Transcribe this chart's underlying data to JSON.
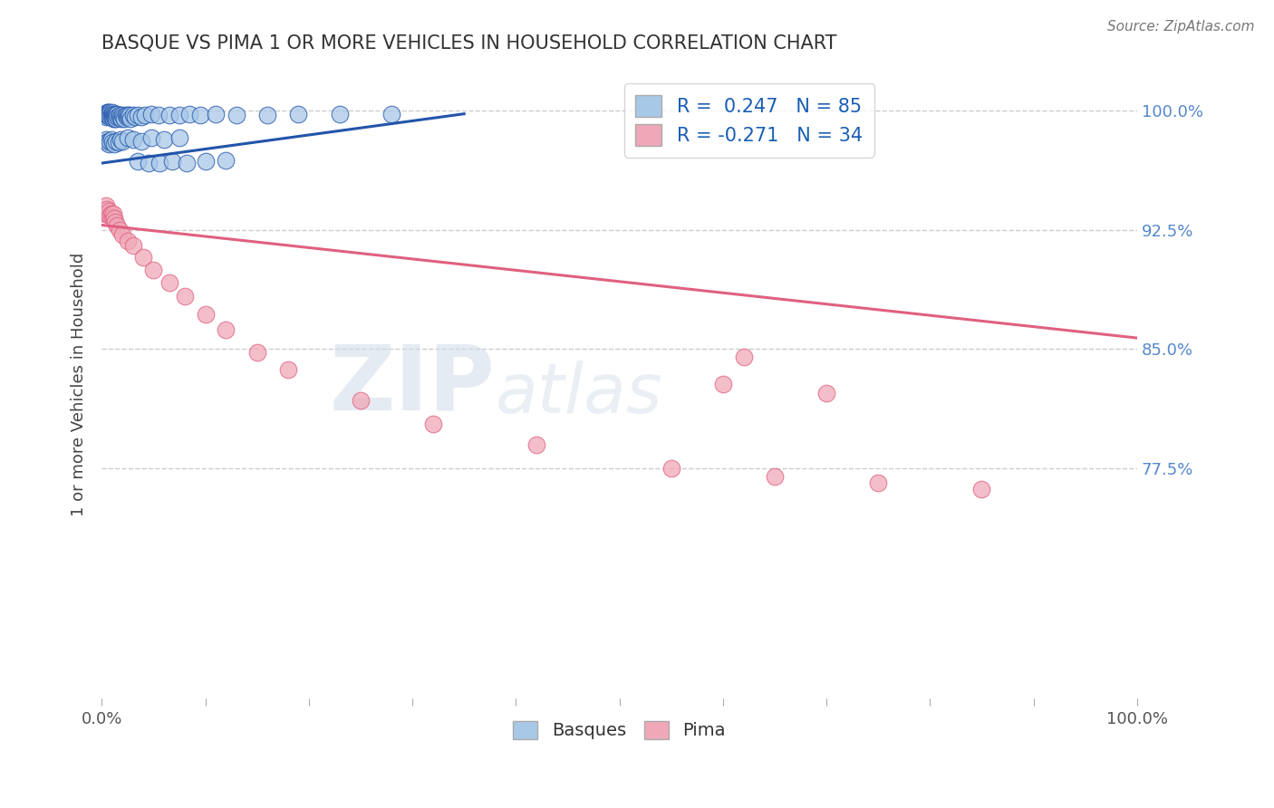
{
  "title": "BASQUE VS PIMA 1 OR MORE VEHICLES IN HOUSEHOLD CORRELATION CHART",
  "source_text": "Source: ZipAtlas.com",
  "ylabel": "1 or more Vehicles in Household",
  "watermark_zip": "ZIP",
  "watermark_atlas": "atlas",
  "xlim": [
    0.0,
    1.0
  ],
  "ylim": [
    0.63,
    1.025
  ],
  "yticks": [
    0.775,
    0.85,
    0.925,
    1.0
  ],
  "ytick_labels": [
    "77.5%",
    "85.0%",
    "92.5%",
    "100.0%"
  ],
  "xticks": [
    0.0,
    0.1,
    0.2,
    0.3,
    0.4,
    0.5,
    0.6,
    0.7,
    0.8,
    0.9,
    1.0
  ],
  "xtick_labels": [
    "0.0%",
    "",
    "",
    "",
    "",
    "",
    "",
    "",
    "",
    "",
    "100.0%"
  ],
  "basque_R": 0.247,
  "basque_N": 85,
  "pima_R": -0.271,
  "pima_N": 34,
  "blue_color": "#a8c8e8",
  "pink_color": "#f0a8b8",
  "blue_line_color": "#2255aa",
  "pink_line_color": "#e06080",
  "legend_R_color": "#1a5fb4",
  "legend_N_color": "#1a5fb4",
  "title_color": "#333333",
  "grid_color": "#cccccc",
  "ytick_color": "#5588cc",
  "background_color": "#ffffff",
  "basque_x": [
    0.003,
    0.004,
    0.004,
    0.005,
    0.005,
    0.005,
    0.006,
    0.006,
    0.006,
    0.007,
    0.007,
    0.007,
    0.008,
    0.008,
    0.008,
    0.009,
    0.009,
    0.01,
    0.01,
    0.01,
    0.011,
    0.011,
    0.012,
    0.012,
    0.013,
    0.013,
    0.014,
    0.014,
    0.015,
    0.015,
    0.016,
    0.017,
    0.018,
    0.019,
    0.02,
    0.021,
    0.022,
    0.023,
    0.024,
    0.025,
    0.026,
    0.027,
    0.028,
    0.03,
    0.032,
    0.035,
    0.038,
    0.042,
    0.048,
    0.055,
    0.065,
    0.075,
    0.085,
    0.095,
    0.11,
    0.13,
    0.16,
    0.19,
    0.23,
    0.28,
    0.004,
    0.005,
    0.006,
    0.007,
    0.008,
    0.009,
    0.01,
    0.012,
    0.014,
    0.016,
    0.018,
    0.02,
    0.025,
    0.03,
    0.038,
    0.048,
    0.06,
    0.075,
    0.035,
    0.045,
    0.056,
    0.068,
    0.082,
    0.1,
    0.12
  ],
  "basque_y": [
    0.998,
    0.997,
    0.996,
    0.999,
    0.998,
    0.997,
    0.999,
    0.998,
    0.997,
    0.999,
    0.998,
    0.997,
    0.999,
    0.998,
    0.996,
    0.997,
    0.996,
    0.999,
    0.998,
    0.996,
    0.997,
    0.995,
    0.998,
    0.996,
    0.997,
    0.995,
    0.997,
    0.995,
    0.998,
    0.996,
    0.996,
    0.997,
    0.996,
    0.995,
    0.997,
    0.996,
    0.995,
    0.997,
    0.996,
    0.997,
    0.996,
    0.997,
    0.995,
    0.997,
    0.996,
    0.997,
    0.996,
    0.997,
    0.998,
    0.997,
    0.997,
    0.997,
    0.998,
    0.997,
    0.998,
    0.997,
    0.997,
    0.998,
    0.998,
    0.998,
    0.982,
    0.98,
    0.981,
    0.979,
    0.981,
    0.982,
    0.98,
    0.979,
    0.981,
    0.98,
    0.982,
    0.981,
    0.983,
    0.982,
    0.981,
    0.983,
    0.982,
    0.983,
    0.968,
    0.967,
    0.967,
    0.968,
    0.967,
    0.968,
    0.969
  ],
  "pima_x": [
    0.003,
    0.004,
    0.005,
    0.006,
    0.007,
    0.008,
    0.009,
    0.01,
    0.011,
    0.012,
    0.013,
    0.015,
    0.017,
    0.02,
    0.025,
    0.03,
    0.04,
    0.05,
    0.065,
    0.08,
    0.1,
    0.12,
    0.15,
    0.18,
    0.25,
    0.32,
    0.42,
    0.55,
    0.65,
    0.75,
    0.85,
    0.6,
    0.7,
    0.62
  ],
  "pima_y": [
    0.935,
    0.94,
    0.938,
    0.935,
    0.937,
    0.934,
    0.935,
    0.933,
    0.935,
    0.932,
    0.93,
    0.928,
    0.925,
    0.922,
    0.918,
    0.915,
    0.908,
    0.9,
    0.892,
    0.883,
    0.872,
    0.862,
    0.848,
    0.837,
    0.818,
    0.803,
    0.79,
    0.775,
    0.77,
    0.766,
    0.762,
    0.828,
    0.822,
    0.845
  ],
  "blue_line_x0": 0.0,
  "blue_line_y0": 0.967,
  "blue_line_x1": 0.35,
  "blue_line_y1": 0.998,
  "pink_line_x0": 0.0,
  "pink_line_y0": 0.928,
  "pink_line_x1": 1.0,
  "pink_line_y1": 0.857
}
